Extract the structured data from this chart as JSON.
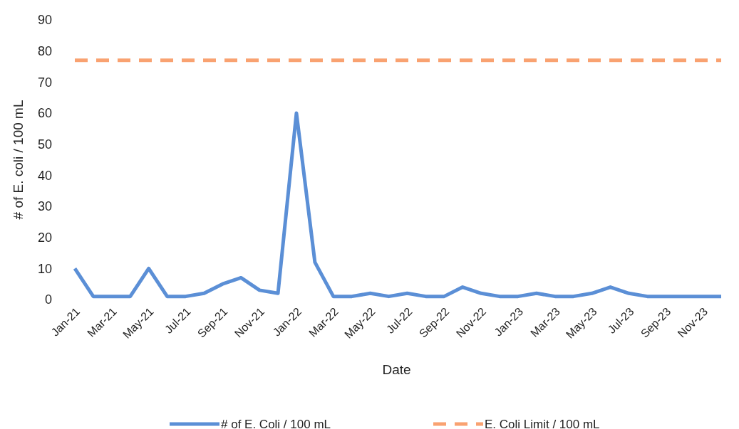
{
  "chart_data": {
    "type": "line",
    "xlabel": "Date",
    "ylabel": "# of E. coli / 100 mL",
    "categories": [
      "Jan-21",
      null,
      "Mar-21",
      null,
      "May-21",
      null,
      "Jul-21",
      null,
      "Sep-21",
      null,
      "Nov-21",
      null,
      "Jan-22",
      null,
      "Mar-22",
      null,
      "May-22",
      null,
      "Jul-22",
      null,
      "Sep-22",
      null,
      "Nov-22",
      null,
      "Jan-23",
      null,
      "Mar-23",
      null,
      "May-23",
      null,
      "Jul-23",
      null,
      "Sep-23",
      null,
      "Nov-23",
      null
    ],
    "series": [
      {
        "name": "# of E. Coli / 100 mL",
        "color": "#5b8fd6",
        "line_style": "solid",
        "values": [
          10,
          1,
          1,
          1,
          10,
          1,
          1,
          2,
          5,
          7,
          3,
          2,
          60,
          12,
          1,
          1,
          2,
          1,
          2,
          1,
          1,
          4,
          2,
          1,
          1,
          2,
          1,
          1,
          2,
          4,
          2,
          1,
          1,
          1,
          1,
          1
        ]
      },
      {
        "name": "E. Coli Limit / 100 mL",
        "color": "#f9a271",
        "line_style": "dashed",
        "values": [
          77,
          77,
          77,
          77,
          77,
          77,
          77,
          77,
          77,
          77,
          77,
          77,
          77,
          77,
          77,
          77,
          77,
          77,
          77,
          77,
          77,
          77,
          77,
          77,
          77,
          77,
          77,
          77,
          77,
          77,
          77,
          77,
          77,
          77,
          77,
          77
        ]
      }
    ],
    "ylim": [
      0,
      90
    ],
    "yticks": [
      0,
      10,
      20,
      30,
      40,
      50,
      60,
      70,
      80,
      90
    ],
    "grid": false,
    "legend": "bottom",
    "marker": "none"
  }
}
